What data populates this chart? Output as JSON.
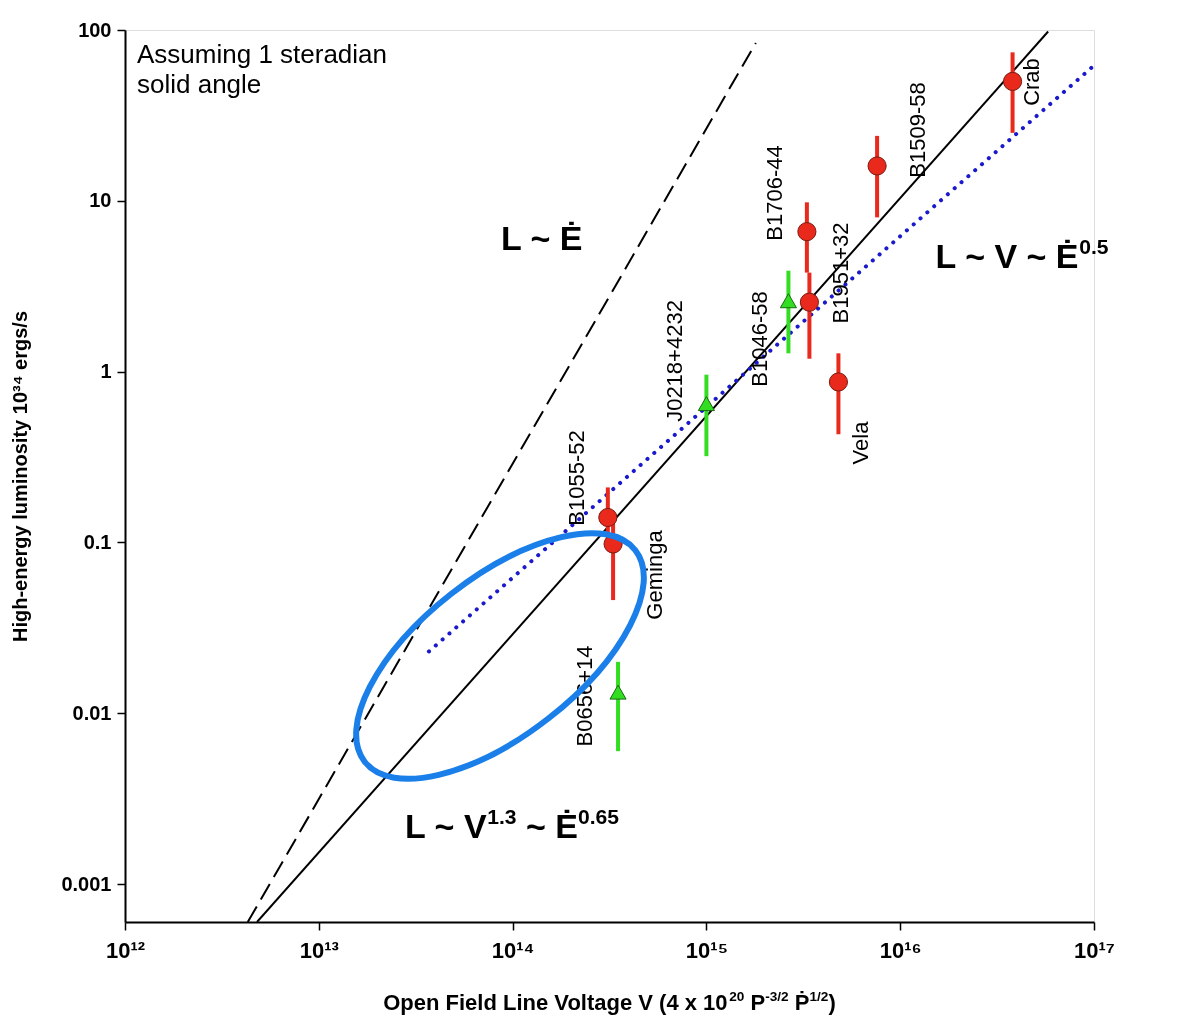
{
  "chart_data": {
    "type": "scatter",
    "xlabel": "Open Field Line Voltage V (4 x 10$^{20}$ P$^{-3/2}$ Ṗ$^{1/2}$)",
    "ylabel": "High-energy luminosity    10³⁴ ergs/s",
    "log": "xy",
    "xlim": [
      1000000000000.0,
      1e+17
    ],
    "ylim": [
      0.0006,
      100
    ],
    "xticks": [
      {
        "value": 1000000000000.0,
        "label": "10¹²"
      },
      {
        "value": 10000000000000.0,
        "label": "10¹³"
      },
      {
        "value": 100000000000000.0,
        "label": "10¹⁴"
      },
      {
        "value": 1000000000000000.0,
        "label": "10¹⁵"
      },
      {
        "value": 1e+16,
        "label": "10¹⁶"
      },
      {
        "value": 1e+17,
        "label": "10¹⁷"
      }
    ],
    "yticks": [
      0.001,
      0.01,
      0.1,
      1,
      10,
      100
    ],
    "grid": false,
    "series": [
      {
        "marker": "circle",
        "color": "#e8291c",
        "x": [
          3.8e+16,
          7600000000000000.0,
          3300000000000000.0,
          3400000000000000.0,
          4800000000000000.0,
          310000000000000.0,
          330000000000000.0
        ],
        "values": [
          50,
          16,
          6.6,
          2.55,
          0.87,
          0.14,
          0.098
        ],
        "errors": [
          [
            25,
            74
          ],
          [
            8,
            24
          ],
          [
            3.8,
            9.8
          ],
          [
            1.19,
            3.8
          ],
          [
            0.43,
            1.28
          ],
          [
            0.1,
            0.21
          ],
          [
            0.046,
            0.14
          ]
        ]
      },
      {
        "marker": "triangle",
        "color": "#33dd22",
        "x": [
          2650000000000000.0,
          1000000000000000.0,
          350000000000000.0
        ],
        "values": [
          2.6,
          0.65,
          0.0133
        ],
        "errors": [
          [
            1.28,
            3.9
          ],
          [
            0.32,
            0.96
          ],
          [
            0.006,
            0.02
          ]
        ]
      },
      {
        "type": "line",
        "line_style": "solid",
        "color": "#000000",
        "x": [
          4800000000000.0,
          5.8e+16
        ],
        "values": [
          0.0006,
          98
        ]
      },
      {
        "type": "line",
        "line_style": "dashed",
        "color": "#000000",
        "x": [
          4300000000000.0,
          1800000000000000.0
        ],
        "values": [
          0.0006,
          84
        ]
      },
      {
        "type": "line",
        "line_style": "dotted",
        "color": "#1a1acc",
        "x": [
          37000000000000.0,
          1e+17
        ],
        "values": [
          0.023,
          62
        ]
      }
    ],
    "annotations": [
      "Assuming 1 steradian\nsolid angle",
      "Crab",
      "B1509-58",
      "B1706-44",
      "B1951+32",
      "B1046-58",
      "Vela",
      "J0218+4232",
      "B1055-52",
      "Geminga",
      "B0656+14",
      "L ~ Ė",
      "L ~ V ~ Ė$^{0.5}$",
      "L ~ V$^{1.3}$ ~ Ė$^{0.65}$"
    ]
  }
}
